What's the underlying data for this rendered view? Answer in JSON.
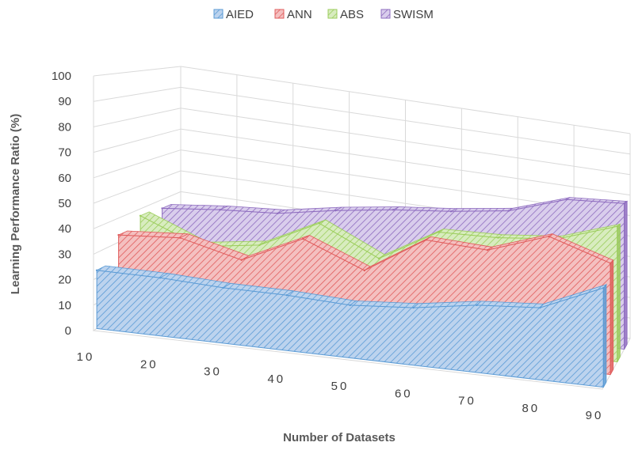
{
  "chart_data": {
    "type": "area",
    "categories": [
      "10",
      "20",
      "30",
      "40",
      "50",
      "60",
      "70",
      "80",
      "90"
    ],
    "series": [
      {
        "name": "AIED",
        "values": [
          23,
          23,
          22,
          22,
          21,
          23,
          27,
          29,
          40
        ],
        "color": "#5b9bd5"
      },
      {
        "name": "ANN",
        "values": [
          33,
          35,
          29,
          41,
          31,
          47,
          46,
          55,
          47
        ],
        "color": "#e05c5c"
      },
      {
        "name": "ABS",
        "values": [
          37,
          27,
          31,
          44,
          32,
          47,
          48,
          51,
          60
        ],
        "color": "#9bcd5b"
      },
      {
        "name": "SWISM",
        "values": [
          36,
          39,
          41,
          46,
          50,
          53,
          57,
          66,
          68
        ],
        "color": "#8e6cbf"
      }
    ],
    "title": "",
    "xlabel": "Number of Datasets",
    "ylabel": "Learning Performance Ratio (%)",
    "ylim": [
      0,
      100
    ],
    "yticks": [
      "0",
      "10",
      "20",
      "30",
      "40",
      "50",
      "60",
      "70",
      "80",
      "90",
      "100"
    ],
    "grid": true,
    "legend": "top"
  }
}
